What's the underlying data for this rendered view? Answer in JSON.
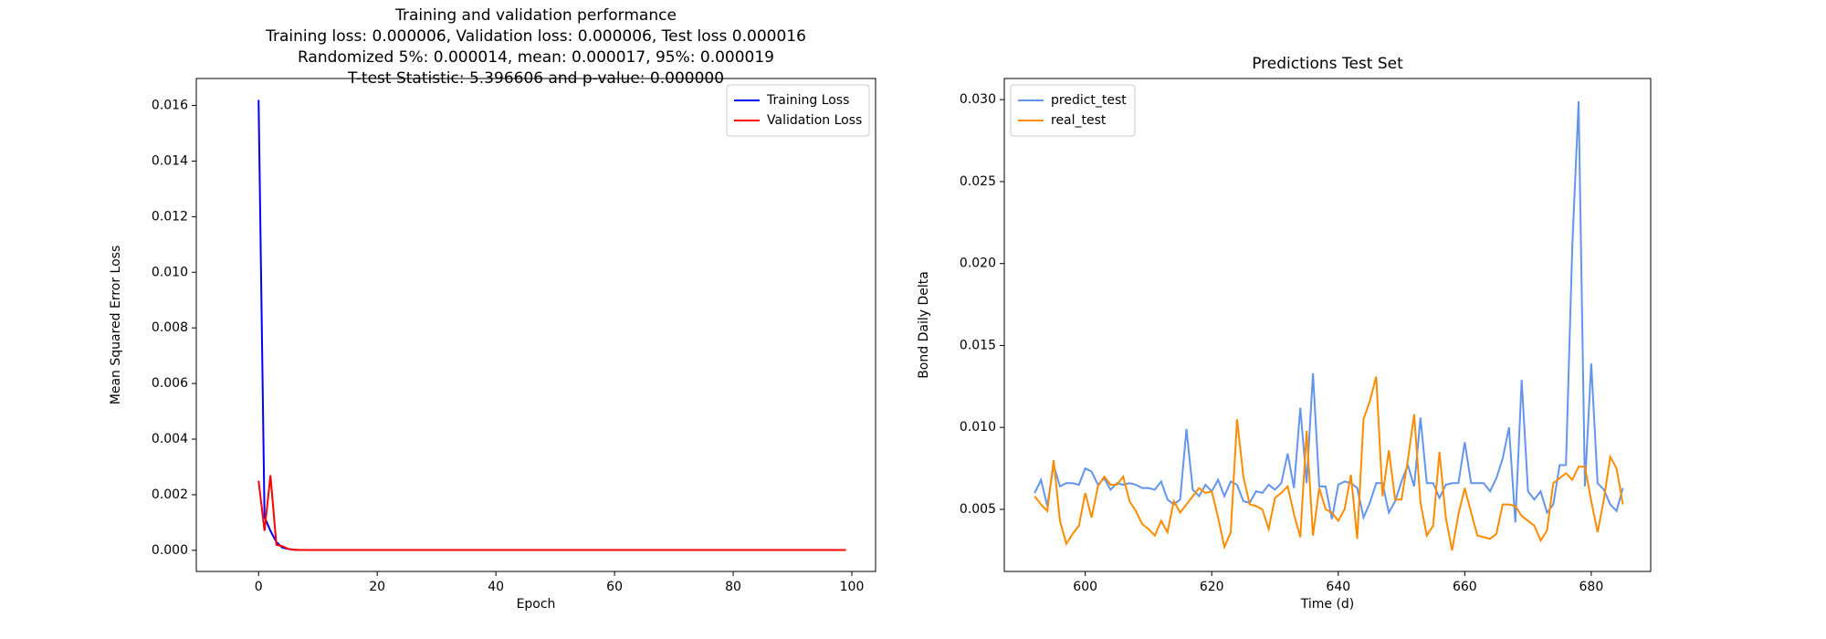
{
  "chart_data": [
    {
      "type": "line",
      "title": "Training and validation performance",
      "subtitle": [
        "Training loss: 0.000006, Validation loss: 0.000006, Test loss 0.000016",
        "Randomized 5%: 0.000014, mean: 0.000017, 95%: 0.000019",
        "T-test Statistic: 5.396606 and p-value: 0.000000"
      ],
      "x_label": "Epoch",
      "y_label": "Mean Squared Error Loss",
      "legend": "upper right",
      "grid": false,
      "xlim": [
        -10.5,
        104
      ],
      "xticks": [
        0,
        20,
        40,
        60,
        80,
        100
      ],
      "ylim": [
        -0.00076,
        0.01697
      ],
      "yticks": [
        {
          "value": 0,
          "label": "0.000"
        },
        {
          "value": 0.002,
          "label": "0.002"
        },
        {
          "value": 0.004,
          "label": "0.004"
        },
        {
          "value": 0.006,
          "label": "0.006"
        },
        {
          "value": 0.008,
          "label": "0.008"
        },
        {
          "value": 0.01,
          "label": "0.010"
        },
        {
          "value": 0.012,
          "label": "0.012"
        },
        {
          "value": 0.014,
          "label": "0.014"
        },
        {
          "value": 0.016,
          "label": "0.016"
        }
      ],
      "x": [
        0,
        1,
        2,
        3,
        4,
        5,
        6,
        7,
        8,
        9,
        10,
        11,
        12,
        13,
        14,
        15,
        16,
        17,
        18,
        19,
        20,
        21,
        22,
        23,
        24,
        25,
        26,
        27,
        28,
        29,
        30,
        31,
        32,
        33,
        34,
        35,
        36,
        37,
        38,
        39,
        40,
        41,
        42,
        43,
        44,
        45,
        46,
        47,
        48,
        49,
        50,
        51,
        52,
        53,
        54,
        55,
        56,
        57,
        58,
        59,
        60,
        61,
        62,
        63,
        64,
        65,
        66,
        67,
        68,
        69,
        70,
        71,
        72,
        73,
        74,
        75,
        76,
        77,
        78,
        79,
        80,
        81,
        82,
        83,
        84,
        85,
        86,
        87,
        88,
        89,
        90,
        91,
        92,
        93,
        94,
        95,
        96,
        97,
        98,
        99
      ],
      "series": [
        {
          "name": "Training Loss",
          "color": "#0000ff",
          "values": [
            0.0162,
            0.0012,
            0.0007,
            0.0003,
            0.0001,
            5e-05,
            2e-05,
            1e-05,
            1e-05,
            1e-05,
            1e-05,
            1e-05,
            1e-05,
            1e-05,
            1e-05,
            1e-05,
            1e-05,
            1e-05,
            1e-05,
            1e-05,
            1e-05,
            1e-05,
            1e-05,
            1e-05,
            1e-05,
            1e-05,
            1e-05,
            1e-05,
            1e-05,
            1e-05,
            1e-05,
            1e-05,
            1e-05,
            1e-05,
            1e-05,
            1e-05,
            1e-05,
            1e-05,
            1e-05,
            1e-05,
            1e-05,
            1e-05,
            1e-05,
            1e-05,
            1e-05,
            1e-05,
            1e-05,
            1e-05,
            1e-05,
            1e-05,
            1e-05,
            1e-05,
            1e-05,
            1e-05,
            1e-05,
            1e-05,
            1e-05,
            1e-05,
            1e-05,
            1e-05,
            1e-05,
            1e-05,
            1e-05,
            1e-05,
            1e-05,
            1e-05,
            1e-05,
            1e-05,
            1e-05,
            1e-05,
            1e-05,
            1e-05,
            1e-05,
            1e-05,
            1e-05,
            1e-05,
            1e-05,
            1e-05,
            1e-05,
            1e-05,
            1e-05,
            1e-05,
            1e-05,
            1e-05,
            1e-05,
            1e-05,
            1e-05,
            1e-05,
            1e-05,
            1e-05,
            1e-05,
            1e-05,
            1e-05,
            1e-05,
            1e-05,
            1e-05,
            1e-05,
            1e-05,
            1e-05,
            1e-05
          ]
        },
        {
          "name": "Validation Loss",
          "color": "#ff0000",
          "values": [
            0.0025,
            0.0007,
            0.0027,
            0.0002,
            0.00015,
            5e-05,
            2e-05,
            1e-05,
            1e-05,
            1e-05,
            1e-05,
            1e-05,
            1e-05,
            1e-05,
            1e-05,
            1e-05,
            1e-05,
            1e-05,
            1e-05,
            1e-05,
            1e-05,
            1e-05,
            1e-05,
            1e-05,
            1e-05,
            1e-05,
            1e-05,
            1e-05,
            1e-05,
            1e-05,
            1e-05,
            1e-05,
            1e-05,
            1e-05,
            1e-05,
            1e-05,
            1e-05,
            1e-05,
            1e-05,
            1e-05,
            1e-05,
            1e-05,
            1e-05,
            1e-05,
            1e-05,
            1e-05,
            1e-05,
            1e-05,
            1e-05,
            1e-05,
            1e-05,
            1e-05,
            1e-05,
            1e-05,
            1e-05,
            1e-05,
            1e-05,
            1e-05,
            1e-05,
            1e-05,
            1e-05,
            1e-05,
            1e-05,
            1e-05,
            1e-05,
            1e-05,
            1e-05,
            1e-05,
            1e-05,
            1e-05,
            1e-05,
            1e-05,
            1e-05,
            1e-05,
            1e-05,
            1e-05,
            1e-05,
            1e-05,
            1e-05,
            1e-05,
            1e-05,
            1e-05,
            1e-05,
            1e-05,
            1e-05,
            1e-05,
            1e-05,
            1e-05,
            1e-05,
            1e-05,
            1e-05,
            1e-05,
            1e-05,
            1e-05,
            1e-05,
            1e-05,
            1e-05,
            1e-05,
            1e-05,
            1e-05
          ]
        }
      ]
    },
    {
      "type": "line",
      "title": "Predictions Test Set",
      "x_label": "Time (d)",
      "y_label": "Bond Daily Delta",
      "legend": "upper left",
      "grid": false,
      "xlim": [
        587.2,
        689.4
      ],
      "xticks": [
        600,
        620,
        640,
        660,
        680
      ],
      "ylim": [
        0.00121,
        0.03129
      ],
      "yticks": [
        {
          "value": 0.005,
          "label": "0.005"
        },
        {
          "value": 0.01,
          "label": "0.010"
        },
        {
          "value": 0.015,
          "label": "0.015"
        },
        {
          "value": 0.02,
          "label": "0.020"
        },
        {
          "value": 0.025,
          "label": "0.025"
        },
        {
          "value": 0.03,
          "label": "0.030"
        }
      ],
      "x": [
        592,
        593,
        594,
        595,
        596,
        597,
        598,
        599,
        600,
        601,
        602,
        603,
        604,
        605,
        606,
        607,
        608,
        609,
        610,
        611,
        612,
        613,
        614,
        615,
        616,
        617,
        618,
        619,
        620,
        621,
        622,
        623,
        624,
        625,
        626,
        627,
        628,
        629,
        630,
        631,
        632,
        633,
        634,
        635,
        636,
        637,
        638,
        639,
        640,
        641,
        642,
        643,
        644,
        645,
        646,
        647,
        648,
        649,
        650,
        651,
        652,
        653,
        654,
        655,
        656,
        657,
        658,
        659,
        660,
        661,
        662,
        663,
        664,
        665,
        666,
        667,
        668,
        669,
        670,
        671,
        672,
        673,
        674,
        675,
        676,
        677,
        678,
        679,
        680,
        681,
        682,
        683,
        684,
        685
      ],
      "series": [
        {
          "name": "predict_test",
          "color": "#6495ed",
          "values": [
            0.006,
            0.0068,
            0.0052,
            0.0077,
            0.0064,
            0.0066,
            0.0066,
            0.0065,
            0.0075,
            0.0073,
            0.0065,
            0.0069,
            0.0062,
            0.0066,
            0.0065,
            0.0066,
            0.0065,
            0.0063,
            0.0063,
            0.0062,
            0.0067,
            0.0056,
            0.0053,
            0.0056,
            0.0099,
            0.0062,
            0.0058,
            0.0065,
            0.0061,
            0.0068,
            0.0058,
            0.0067,
            0.0065,
            0.0055,
            0.0054,
            0.0061,
            0.006,
            0.0065,
            0.0062,
            0.0066,
            0.0084,
            0.0063,
            0.0112,
            0.0066,
            0.0133,
            0.0064,
            0.0064,
            0.0044,
            0.0065,
            0.0067,
            0.0066,
            0.0063,
            0.0045,
            0.0054,
            0.0066,
            0.0066,
            0.0048,
            0.0055,
            0.0067,
            0.0077,
            0.0064,
            0.0106,
            0.0066,
            0.0066,
            0.0057,
            0.0065,
            0.0066,
            0.0066,
            0.0091,
            0.0066,
            0.0066,
            0.0066,
            0.0061,
            0.0069,
            0.0081,
            0.01,
            0.0042,
            0.0129,
            0.0061,
            0.0056,
            0.0061,
            0.0048,
            0.0053,
            0.0077,
            0.0077,
            0.021,
            0.0299,
            0.0064,
            0.0139,
            0.0066,
            0.0062,
            0.0053,
            0.0049,
            0.0063
          ]
        },
        {
          "name": "real_test",
          "color": "#ff8c00",
          "values": [
            0.0058,
            0.0053,
            0.0049,
            0.008,
            0.0043,
            0.0029,
            0.0035,
            0.004,
            0.006,
            0.0045,
            0.0064,
            0.007,
            0.0065,
            0.0065,
            0.007,
            0.0055,
            0.0049,
            0.0041,
            0.0038,
            0.0034,
            0.0043,
            0.0036,
            0.0055,
            0.0048,
            0.0053,
            0.0058,
            0.0063,
            0.006,
            0.0061,
            0.0045,
            0.0027,
            0.0036,
            0.0105,
            0.007,
            0.0053,
            0.0052,
            0.005,
            0.0038,
            0.0057,
            0.006,
            0.0064,
            0.0047,
            0.0033,
            0.0098,
            0.0034,
            0.0063,
            0.005,
            0.0048,
            0.0043,
            0.005,
            0.0071,
            0.0032,
            0.0105,
            0.0116,
            0.0131,
            0.0058,
            0.0086,
            0.0056,
            0.0056,
            0.008,
            0.0108,
            0.0054,
            0.0034,
            0.004,
            0.0085,
            0.0045,
            0.0025,
            0.0047,
            0.0063,
            0.0048,
            0.0034,
            0.0033,
            0.0032,
            0.0035,
            0.0053,
            0.0053,
            0.0052,
            0.0046,
            0.0043,
            0.004,
            0.0031,
            0.0037,
            0.0066,
            0.0069,
            0.0072,
            0.0068,
            0.0076,
            0.0076,
            0.0055,
            0.0036,
            0.0056,
            0.0082,
            0.0075,
            0.0053
          ]
        }
      ]
    }
  ]
}
